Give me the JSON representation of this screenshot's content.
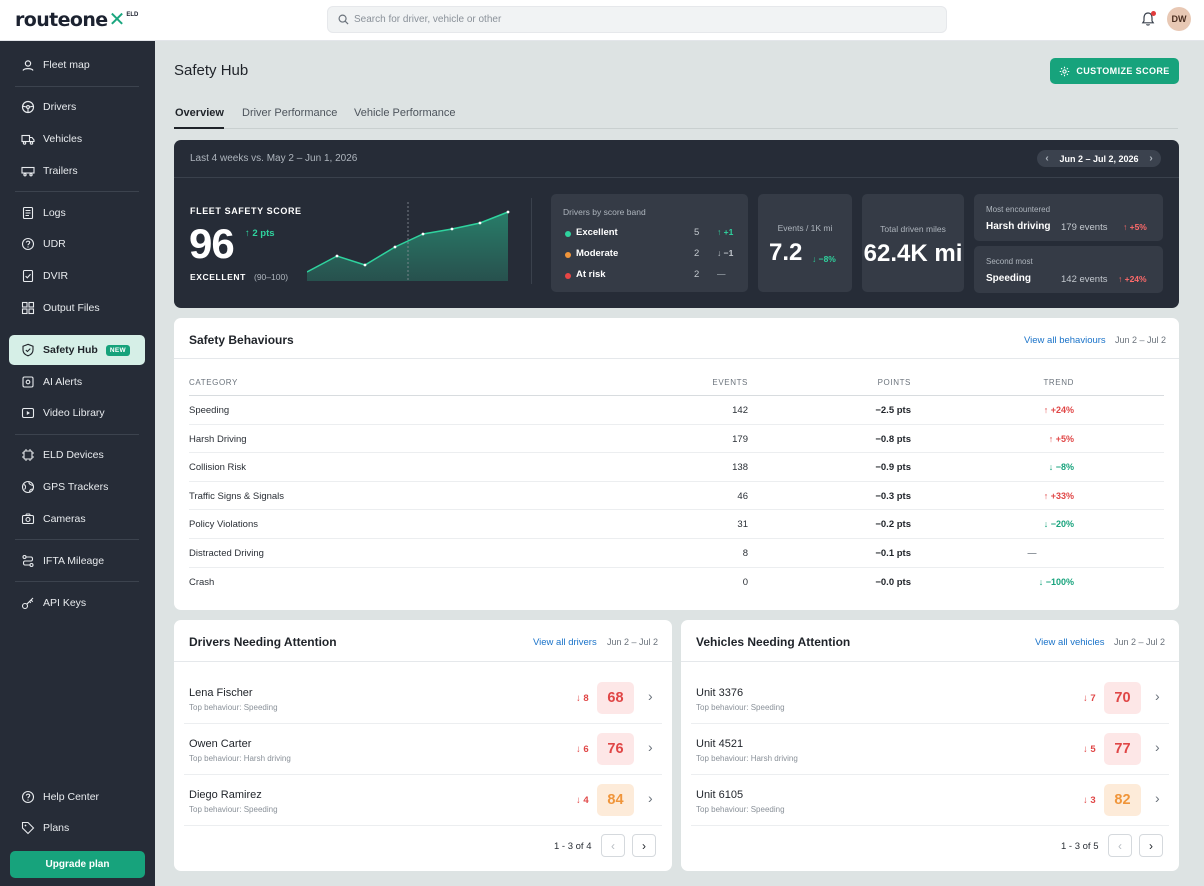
{
  "brand": {
    "name": "routeone",
    "mark": "✕",
    "suffix": "ELD"
  },
  "search": {
    "placeholder": "Search for driver, vehicle or other"
  },
  "user": {
    "initials": "DW"
  },
  "sidebar": {
    "items": [
      {
        "label": "Fleet map",
        "icon": "pin-icon"
      },
      {
        "label": "Drivers",
        "icon": "steering-wheel-icon"
      },
      {
        "label": "Vehicles",
        "icon": "truck-icon"
      },
      {
        "label": "Trailers",
        "icon": "trailer-icon"
      },
      {
        "label": "Logs",
        "icon": "logs-icon"
      },
      {
        "label": "UDR",
        "icon": "udr-icon"
      },
      {
        "label": "DVIR",
        "icon": "checklist-icon"
      },
      {
        "label": "Output Files",
        "icon": "files-grid-icon"
      },
      {
        "label": "Safety Hub",
        "icon": "shield-icon",
        "badge": "NEW"
      },
      {
        "label": "AI Alerts",
        "icon": "ai-alerts-icon"
      },
      {
        "label": "Video Library",
        "icon": "video-icon"
      },
      {
        "label": "ELD Devices",
        "icon": "device-icon"
      },
      {
        "label": "GPS Trackers",
        "icon": "gps-icon"
      },
      {
        "label": "Cameras",
        "icon": "camera-icon"
      },
      {
        "label": "IFTA Mileage",
        "icon": "route-icon"
      },
      {
        "label": "API Keys",
        "icon": "key-icon"
      },
      {
        "label": "Help Center",
        "icon": "help-icon"
      },
      {
        "label": "Plans",
        "icon": "tag-icon"
      }
    ],
    "upgrade": "Upgrade plan"
  },
  "page": {
    "title": "Safety Hub",
    "customize": "CUSTOMIZE SCORE",
    "tabs": [
      "Overview",
      "Driver Performance",
      "Vehicle Performance"
    ]
  },
  "score_panel": {
    "period": "Last 4 weeks vs. May 2 – Jun 1, 2026",
    "date_range": "Jun 2 – Jul 2, 2026",
    "label": "FLEET SAFETY SCORE",
    "value": "96",
    "delta": "↑ 2 pts",
    "grade": "EXCELLENT",
    "range": "(90–100)",
    "bands": {
      "title": "Drivers by score band",
      "rows": [
        {
          "name": "Excellent",
          "count": "5",
          "delta": "↑ +1",
          "color": "#2fd39e"
        },
        {
          "name": "Moderate",
          "count": "2",
          "delta": "↓ −1",
          "color": "#f0953a"
        },
        {
          "name": "At risk",
          "count": "2",
          "delta": "—",
          "color": "#e84545"
        }
      ]
    },
    "events": {
      "label": "Events / 1K mi",
      "value": "7.2",
      "delta": "↓ −8%"
    },
    "miles": {
      "label": "Total driven miles",
      "value": "62.4K mi"
    },
    "most": {
      "label": "Most encountered",
      "name": "Harsh driving",
      "events": "179 events",
      "delta": "↑ +5%"
    },
    "second": {
      "label": "Second most",
      "name": "Speeding",
      "events": "142 events",
      "delta": "↑ +24%"
    }
  },
  "behaviours": {
    "title": "Safety Behaviours",
    "link": "View all behaviours",
    "date": "Jun 2 – Jul 2",
    "headers": [
      "CATEGORY",
      "EVENTS",
      "POINTS",
      "TREND"
    ],
    "rows": [
      {
        "category": "Speeding",
        "events": "142",
        "points": "−2.5 pts",
        "trend": "↑ +24%",
        "dir": "up"
      },
      {
        "category": "Harsh Driving",
        "events": "179",
        "points": "−0.8 pts",
        "trend": "↑ +5%",
        "dir": "up"
      },
      {
        "category": "Collision Risk",
        "events": "138",
        "points": "−0.9 pts",
        "trend": "↓ −8%",
        "dir": "down"
      },
      {
        "category": "Traffic Signs & Signals",
        "events": "46",
        "points": "−0.3 pts",
        "trend": "↑ +33%",
        "dir": "up"
      },
      {
        "category": "Policy Violations",
        "events": "31",
        "points": "−0.2 pts",
        "trend": "↓ −20%",
        "dir": "down"
      },
      {
        "category": "Distracted Driving",
        "events": "8",
        "points": "−0.1 pts",
        "trend": "—",
        "dir": "flat"
      },
      {
        "category": "Crash",
        "events": "0",
        "points": "−0.0 pts",
        "trend": "↓ −100%",
        "dir": "down"
      }
    ]
  },
  "drivers": {
    "title": "Drivers Needing Attention",
    "link": "View all drivers",
    "date": "Jun 2 – Jul 2",
    "rows": [
      {
        "name": "Lena Fischer",
        "sub": "Top behaviour: Speeding",
        "delta": "↓ 8",
        "score": "68"
      },
      {
        "name": "Owen Carter",
        "sub": "Top behaviour: Harsh driving",
        "delta": "↓ 6",
        "score": "76"
      },
      {
        "name": "Diego Ramirez",
        "sub": "Top behaviour: Speeding",
        "delta": "↓ 4",
        "score": "84"
      }
    ],
    "pager": "1 - 3 of 4"
  },
  "vehicles": {
    "title": "Vehicles Needing Attention",
    "link": "View all vehicles",
    "date": "Jun 2 – Jul 2",
    "rows": [
      {
        "name": "Unit 3376",
        "sub": "Top behaviour: Speeding",
        "delta": "↓ 7",
        "score": "70"
      },
      {
        "name": "Unit 4521",
        "sub": "Top behaviour: Harsh driving",
        "delta": "↓ 5",
        "score": "77"
      },
      {
        "name": "Unit 6105",
        "sub": "Top behaviour: Speeding",
        "delta": "↓ 3",
        "score": "82"
      }
    ],
    "pager": "1 - 3 of 5"
  },
  "colors": {
    "accent": "#17a37c",
    "sidebar": "#262c37",
    "danger": "#e04646",
    "warn": "#f0953a"
  }
}
